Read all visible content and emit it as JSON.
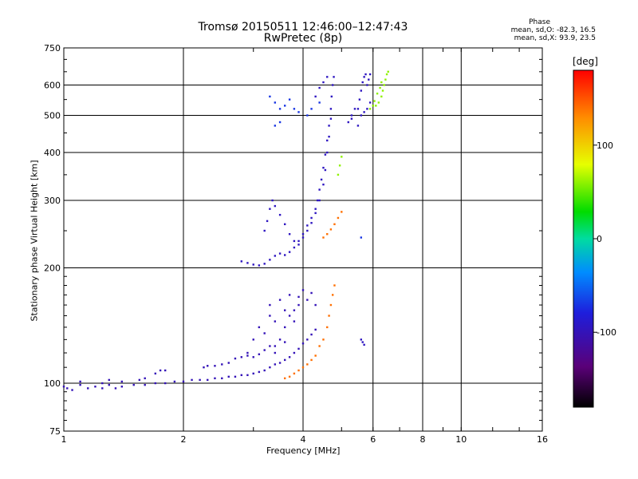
{
  "header": {
    "title": "Tromsø 20150511 12:46:00–12:47:43",
    "subtitle": "RwPretec (8p)",
    "phase_heading": "Phase",
    "phase_o": "mean, sd,O: -82.3, 16.5",
    "phase_x": "mean, sd,X: 93.9, 23.5"
  },
  "chart_data": {
    "type": "scatter",
    "title": "Tromsø 20150511 12:46:00–12:47:43",
    "subtitle": "RwPretec (8p)",
    "xlabel": "Frequency [MHz]",
    "ylabel": "Stationary phase Virtual Height [km]",
    "x_scale": "log",
    "y_scale": "log",
    "xlim": [
      1,
      16
    ],
    "ylim": [
      75,
      750
    ],
    "x_ticks": [
      1,
      2,
      4,
      6,
      8,
      10,
      16
    ],
    "x_tick_labels": [
      "1",
      "2",
      "4",
      "6",
      "8",
      "10",
      "16"
    ],
    "y_ticks": [
      75,
      100,
      200,
      300,
      400,
      500,
      600,
      750
    ],
    "y_tick_labels": [
      "75",
      "100",
      "200",
      "300",
      "400",
      "500",
      "600",
      "750"
    ],
    "grid": true,
    "colorbar": {
      "label": "[deg]",
      "range": [
        -180,
        180
      ],
      "ticks": [
        100,
        0,
        -100
      ],
      "tick_labels": [
        "100",
        "0",
        "-100"
      ],
      "colormap": "rainbow (black → purple → blue → cyan → green → yellow → orange → red)"
    },
    "series": [
      {
        "phase": -100,
        "points": [
          [
            1.0,
            98
          ],
          [
            1.02,
            97
          ],
          [
            1.05,
            96
          ],
          [
            1.1,
            99
          ],
          [
            1.15,
            97
          ],
          [
            1.2,
            98
          ],
          [
            1.25,
            97
          ],
          [
            1.3,
            99
          ],
          [
            1.35,
            97
          ],
          [
            1.4,
            98
          ],
          [
            1.5,
            99
          ],
          [
            1.6,
            99
          ],
          [
            1.7,
            100
          ],
          [
            1.8,
            100
          ],
          [
            1.9,
            101
          ],
          [
            2.0,
            101
          ],
          [
            2.1,
            102
          ],
          [
            2.2,
            102
          ],
          [
            2.3,
            102
          ],
          [
            2.4,
            103
          ],
          [
            2.5,
            103
          ],
          [
            2.6,
            104
          ],
          [
            2.7,
            104
          ],
          [
            2.8,
            105
          ],
          [
            2.9,
            105
          ],
          [
            3.0,
            106
          ],
          [
            3.1,
            107
          ],
          [
            3.2,
            108
          ],
          [
            3.3,
            110
          ],
          [
            3.4,
            112
          ],
          [
            3.5,
            113
          ],
          [
            3.6,
            115
          ],
          [
            3.7,
            117
          ],
          [
            3.8,
            120
          ],
          [
            3.9,
            123
          ],
          [
            4.0,
            127
          ],
          [
            4.1,
            130
          ],
          [
            4.2,
            134
          ],
          [
            4.3,
            138
          ],
          [
            1.1,
            101
          ],
          [
            1.25,
            100
          ],
          [
            1.3,
            102
          ],
          [
            1.4,
            101
          ],
          [
            1.55,
            102
          ],
          [
            1.6,
            103
          ],
          [
            1.7,
            106
          ],
          [
            1.75,
            108
          ],
          [
            1.8,
            108
          ],
          [
            2.25,
            110
          ],
          [
            2.3,
            111
          ],
          [
            2.4,
            111
          ],
          [
            2.5,
            112
          ],
          [
            2.6,
            113
          ],
          [
            2.7,
            116
          ],
          [
            2.8,
            117
          ],
          [
            2.9,
            118
          ],
          [
            3.0,
            117
          ],
          [
            3.1,
            119
          ],
          [
            3.2,
            122
          ],
          [
            3.3,
            125
          ],
          [
            3.4,
            120
          ],
          [
            3.5,
            130
          ],
          [
            3.2,
            135
          ],
          [
            3.4,
            145
          ],
          [
            3.6,
            140
          ],
          [
            3.7,
            150
          ],
          [
            3.8,
            155
          ],
          [
            3.9,
            160
          ],
          [
            3.5,
            165
          ],
          [
            3.7,
            170
          ],
          [
            3.9,
            168
          ],
          [
            4.0,
            175
          ],
          [
            4.2,
            172
          ],
          [
            3.6,
            155
          ],
          [
            3.3,
            150
          ],
          [
            3.1,
            140
          ],
          [
            3.0,
            130
          ],
          [
            2.9,
            120
          ],
          [
            3.3,
            160
          ],
          [
            3.8,
            145
          ],
          [
            4.1,
            165
          ],
          [
            4.3,
            160
          ],
          [
            3.4,
            125
          ],
          [
            3.6,
            128
          ]
        ]
      },
      {
        "phase": -95,
        "points": [
          [
            2.8,
            208
          ],
          [
            2.9,
            206
          ],
          [
            3.0,
            204
          ],
          [
            3.1,
            203
          ],
          [
            3.2,
            205
          ],
          [
            3.3,
            210
          ],
          [
            3.4,
            215
          ],
          [
            3.5,
            218
          ],
          [
            3.6,
            216
          ],
          [
            3.7,
            220
          ],
          [
            3.8,
            226
          ],
          [
            3.9,
            235
          ],
          [
            4.0,
            245
          ],
          [
            4.1,
            258
          ],
          [
            4.2,
            270
          ],
          [
            4.3,
            285
          ],
          [
            4.35,
            300
          ],
          [
            4.4,
            320
          ],
          [
            4.45,
            340
          ],
          [
            4.5,
            365
          ],
          [
            4.55,
            395
          ],
          [
            4.6,
            430
          ],
          [
            4.65,
            470
          ],
          [
            4.7,
            520
          ],
          [
            4.72,
            560
          ],
          [
            4.75,
            600
          ],
          [
            4.78,
            630
          ],
          [
            3.2,
            250
          ],
          [
            3.25,
            265
          ],
          [
            3.3,
            285
          ],
          [
            3.35,
            300
          ],
          [
            3.4,
            290
          ],
          [
            3.5,
            275
          ],
          [
            3.6,
            260
          ],
          [
            3.7,
            245
          ],
          [
            3.8,
            235
          ],
          [
            3.9,
            230
          ],
          [
            4.0,
            240
          ],
          [
            4.1,
            250
          ],
          [
            4.2,
            262
          ],
          [
            4.3,
            278
          ],
          [
            4.4,
            300
          ],
          [
            4.5,
            330
          ],
          [
            4.55,
            360
          ],
          [
            4.6,
            400
          ],
          [
            4.65,
            440
          ],
          [
            4.7,
            490
          ],
          [
            4.3,
            560
          ],
          [
            4.4,
            590
          ],
          [
            4.5,
            610
          ],
          [
            4.6,
            630
          ],
          [
            5.5,
            520
          ],
          [
            5.55,
            550
          ],
          [
            5.6,
            580
          ],
          [
            5.65,
            610
          ],
          [
            5.7,
            630
          ],
          [
            5.75,
            640
          ],
          [
            5.3,
            500
          ],
          [
            5.4,
            520
          ],
          [
            5.8,
            600
          ],
          [
            5.85,
            620
          ],
          [
            5.9,
            640
          ],
          [
            5.6,
            500
          ],
          [
            5.7,
            510
          ],
          [
            5.8,
            520
          ],
          [
            5.9,
            540
          ],
          [
            5.2,
            480
          ],
          [
            5.3,
            490
          ],
          [
            5.5,
            470
          ],
          [
            5.6,
            130
          ],
          [
            5.65,
            128
          ],
          [
            5.7,
            126
          ]
        ]
      },
      {
        "phase": -70,
        "points": [
          [
            3.3,
            560
          ],
          [
            3.4,
            540
          ],
          [
            3.5,
            520
          ],
          [
            3.6,
            530
          ],
          [
            3.7,
            550
          ],
          [
            3.8,
            520
          ],
          [
            3.9,
            510
          ],
          [
            3.5,
            480
          ],
          [
            3.4,
            470
          ],
          [
            5.6,
            240
          ],
          [
            4.1,
            500
          ],
          [
            4.2,
            520
          ],
          [
            4.4,
            540
          ]
        ]
      },
      {
        "phase": 60,
        "points": [
          [
            6.1,
            530
          ],
          [
            6.2,
            540
          ],
          [
            6.3,
            560
          ],
          [
            6.35,
            580
          ],
          [
            6.4,
            600
          ],
          [
            6.45,
            620
          ],
          [
            6.5,
            640
          ],
          [
            6.55,
            650
          ],
          [
            5.9,
            520
          ],
          [
            6.0,
            530
          ],
          [
            6.05,
            545
          ],
          [
            6.15,
            570
          ],
          [
            6.25,
            590
          ],
          [
            6.3,
            610
          ],
          [
            4.9,
            350
          ],
          [
            4.95,
            370
          ],
          [
            5.0,
            390
          ]
        ]
      },
      {
        "phase": 140,
        "points": [
          [
            4.5,
            240
          ],
          [
            4.6,
            245
          ],
          [
            4.7,
            252
          ],
          [
            4.8,
            260
          ],
          [
            4.9,
            270
          ],
          [
            5.0,
            280
          ],
          [
            3.6,
            103
          ],
          [
            3.7,
            104
          ],
          [
            3.8,
            106
          ],
          [
            3.9,
            108
          ],
          [
            4.0,
            110
          ],
          [
            4.1,
            112
          ],
          [
            4.2,
            115
          ],
          [
            4.3,
            118
          ],
          [
            4.4,
            125
          ],
          [
            4.5,
            130
          ],
          [
            4.6,
            140
          ],
          [
            4.65,
            150
          ],
          [
            4.7,
            160
          ],
          [
            4.75,
            170
          ],
          [
            4.8,
            180
          ]
        ]
      }
    ]
  }
}
